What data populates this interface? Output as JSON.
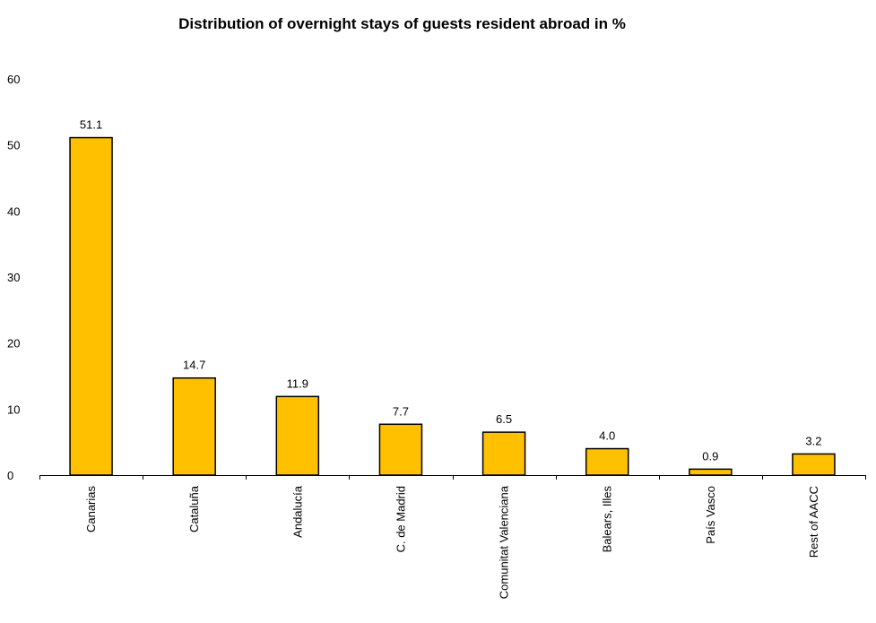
{
  "chart_data": {
    "type": "bar",
    "title": "Distribution of overnight stays of guests resident abroad in %",
    "xlabel": "",
    "ylabel": "",
    "categories": [
      "Canarias",
      "Cataluña",
      "Andalucía",
      "C. de Madrid",
      "Comunitat Valenciana",
      "Balears, Illes",
      "País Vasco",
      "Rest of AACC"
    ],
    "values": [
      51.1,
      14.7,
      11.9,
      7.7,
      6.5,
      4.0,
      0.9,
      3.2
    ],
    "data_labels": [
      "51.1",
      "14.7",
      "11.9",
      "7.7",
      "6.5",
      "4.0",
      "0.9",
      "3.2"
    ],
    "ylim": [
      0,
      60
    ],
    "yticks": [
      0,
      10,
      20,
      30,
      40,
      50,
      60
    ],
    "ytick_labels": [
      "0",
      "10",
      "20",
      "30",
      "40",
      "50",
      "60"
    ],
    "grid": false,
    "legend": "none",
    "colors": {
      "bar_fill": "#FFC000",
      "bar_stroke": "#000000",
      "axis": "#000000"
    }
  }
}
